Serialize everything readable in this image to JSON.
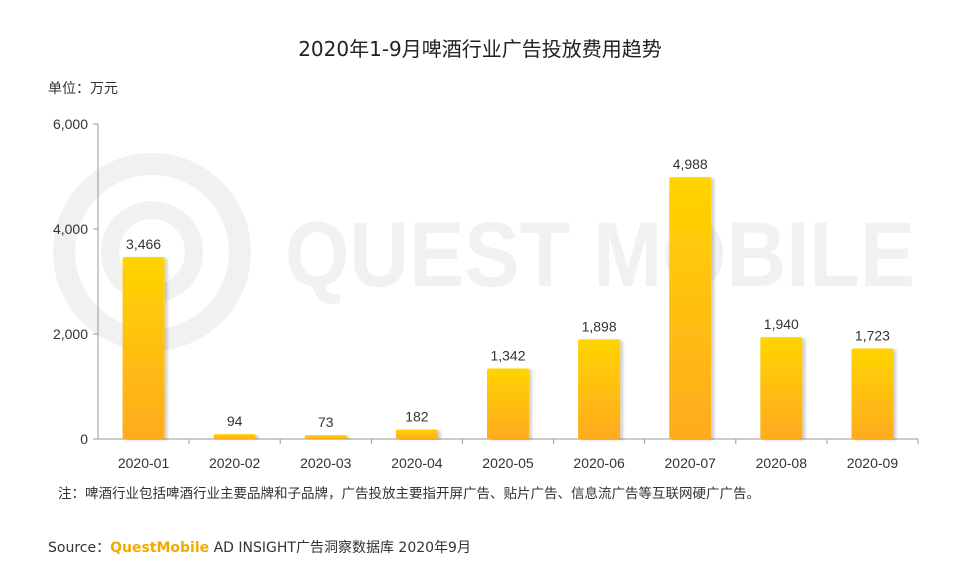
{
  "chart_data": {
    "type": "bar",
    "title": "2020年1-9月啤酒行业广告投放费用趋势",
    "unit_label": "单位：万元",
    "categories": [
      "2020-01",
      "2020-02",
      "2020-03",
      "2020-04",
      "2020-05",
      "2020-06",
      "2020-07",
      "2020-08",
      "2020-09"
    ],
    "values": [
      3466,
      94,
      73,
      182,
      1342,
      1898,
      4988,
      1940,
      1723
    ],
    "value_labels": [
      "3,466",
      "94",
      "73",
      "182",
      "1,342",
      "1,898",
      "4,988",
      "1,940",
      "1,723"
    ],
    "y_ticks": [
      0,
      2000,
      4000,
      6000
    ],
    "y_tick_labels": [
      "0",
      "2,000",
      "4,000",
      "6,000"
    ],
    "ylim": [
      0,
      6000
    ],
    "xlabel": "",
    "ylabel": "",
    "grid": false,
    "legend": "none"
  },
  "watermark": "QUEST MOBILE",
  "note": "注：啤酒行业包括啤酒行业主要品牌和子品牌，广告投放主要指开屏广告、贴片广告、信息流广告等互联网硬广广告。",
  "source": {
    "prefix": "Source：",
    "brand": "QuestMobile",
    "suffix": " AD INSIGHT广告洞察数据库 2020年9月"
  },
  "colors": {
    "bar_top": "#ffd400",
    "bar_bottom": "#ffab1f",
    "axis": "#999999",
    "watermark": "#f1f1f1",
    "brand": "#f5a800"
  }
}
